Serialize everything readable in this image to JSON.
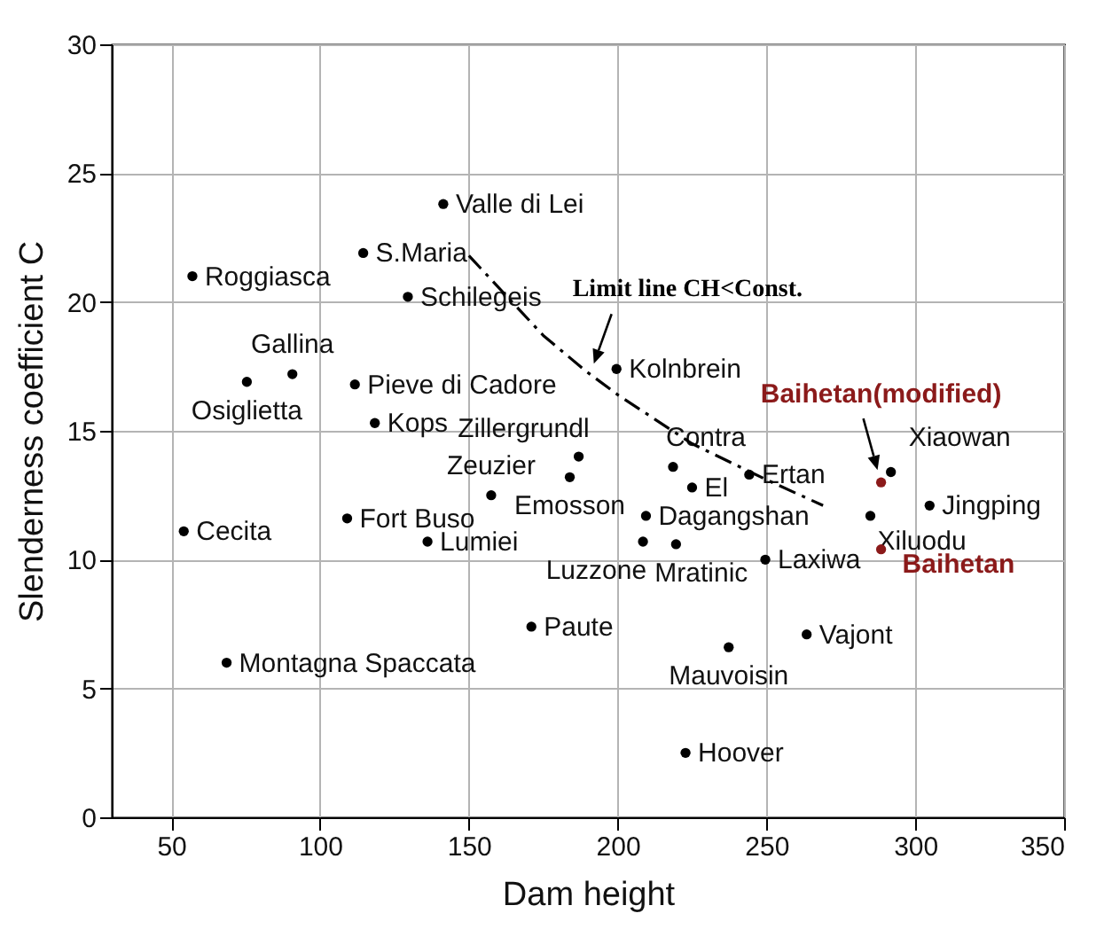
{
  "chart_data": {
    "type": "scatter",
    "xlabel": "Dam height",
    "ylabel": "Slenderness coefficient C",
    "xlim": [
      30,
      350
    ],
    "ylim": [
      0,
      30
    ],
    "xticks": [
      50,
      100,
      150,
      200,
      250,
      300,
      350
    ],
    "yticks": [
      0,
      5,
      10,
      15,
      20,
      25,
      30
    ],
    "grid": true,
    "marker": "circle",
    "annotations": [
      {
        "text": "Limit line CH<Const.",
        "x": 190.8,
        "y": 17.4
      }
    ],
    "series": [
      {
        "color": "#000000",
        "x": [
          141.4,
          114.5,
          57.1,
          129.5,
          75.4,
          90.7,
          111.7,
          118.4,
          186.9,
          183.9,
          157.5,
          109.1,
          54.2,
          136.1,
          199.6,
          218.6,
          225,
          244.2,
          209.5,
          208.5,
          219.6,
          249.6,
          284.9,
          304.8,
          291.8,
          68.6,
          171,
          237.3,
          263.5,
          222.8
        ],
        "values": [
          23.8,
          21.9,
          21.0,
          20.2,
          16.9,
          17.2,
          16.8,
          15.3,
          14.0,
          13.2,
          12.5,
          11.6,
          11.1,
          10.7,
          17.4,
          13.6,
          12.8,
          13.3,
          11.7,
          10.7,
          10.6,
          10.0,
          11.7,
          12.1,
          13.4,
          6.0,
          7.4,
          6.6,
          7.1,
          2.5
        ],
        "value_labels": [
          "Valle di Lei",
          "S.Maria",
          "Roggiasca",
          "Schilegeis",
          "Osiglietta",
          "Gallina",
          "Pieve di Cadore",
          "Kops",
          "Zillergrundl",
          "Emosson",
          "Zeuzier",
          "Fort Buso",
          "Cecita",
          "Lumiei",
          "Kolnbrein",
          "Contra",
          "El",
          "Ertan",
          "Dagangshan",
          "Luzzone",
          "Mratinic",
          "Laxiwa",
          "Xiluodu",
          "Jingping",
          "Xiaowan",
          "Montagna Spaccata",
          "Paute",
          "Mauvoisin",
          "Vajont",
          "Hoover"
        ]
      },
      {
        "color": "#8b1a1a",
        "x": [
          288.5,
          288.5
        ],
        "values": [
          13.0,
          10.4
        ],
        "value_labels": [
          "Baihetan(modified)",
          "Baihetan"
        ]
      },
      {
        "type": "line",
        "color": "#000000",
        "line_style": "dashed",
        "marker": "none",
        "x": [
          150,
          175,
          189.5,
          200,
          225,
          250,
          269
        ],
        "values": [
          21.8,
          18.7,
          17.3,
          16.4,
          14.5,
          13.1,
          12.1
        ]
      }
    ]
  }
}
